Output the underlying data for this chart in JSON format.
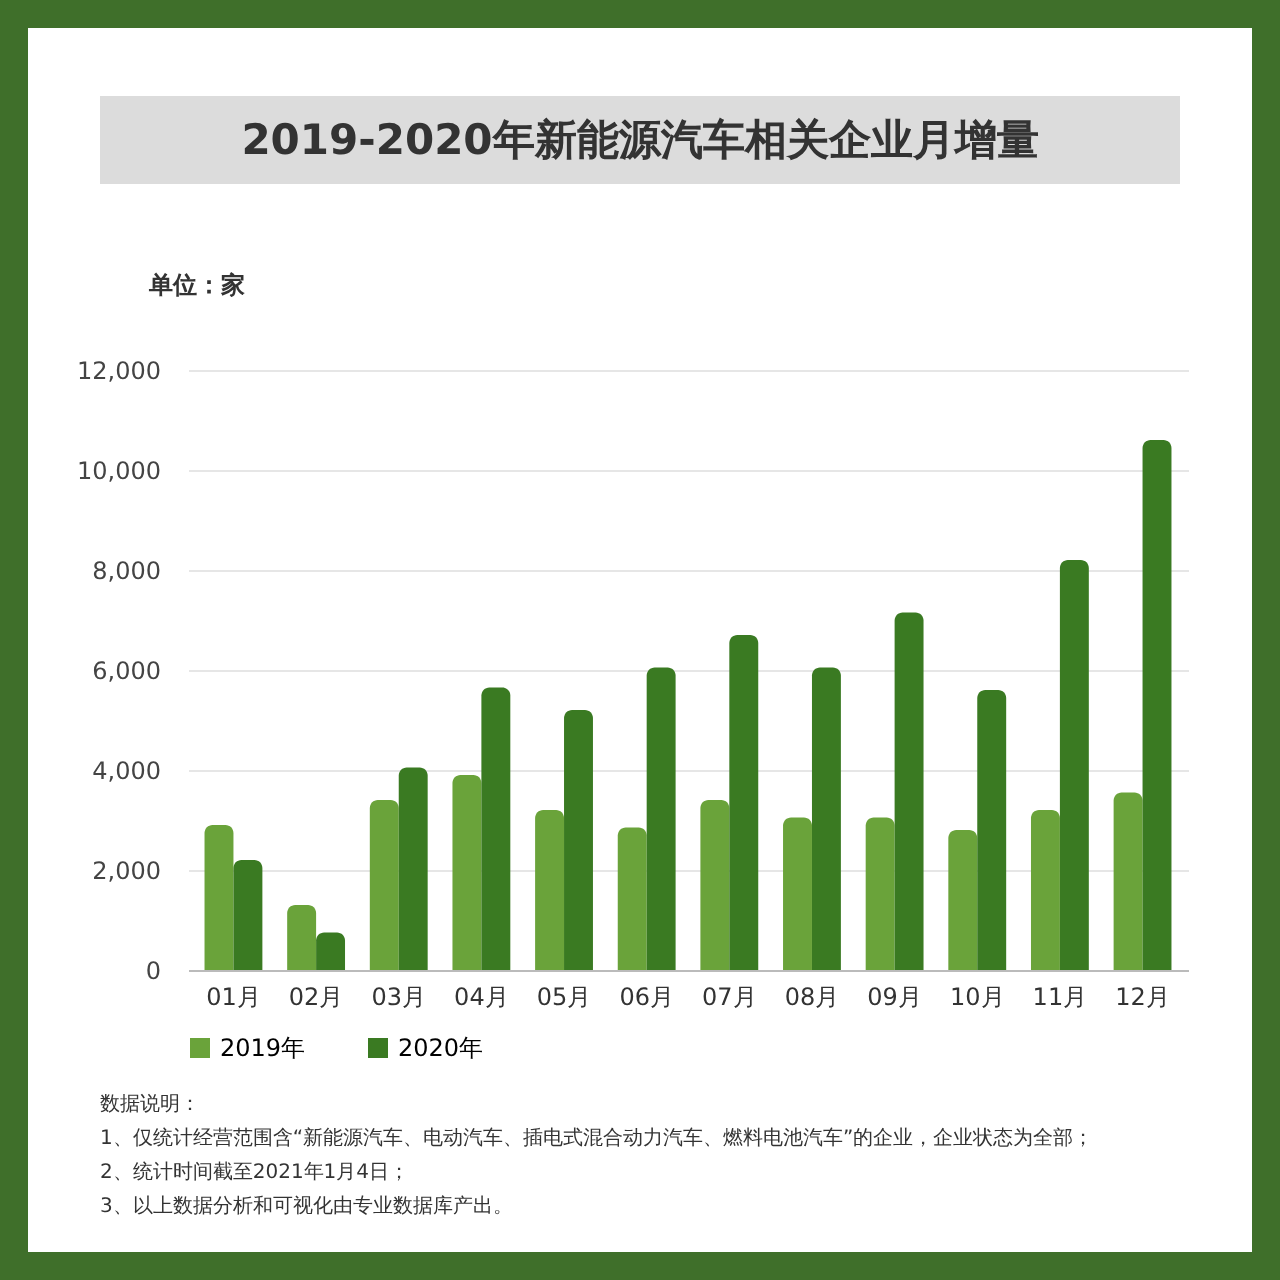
{
  "chart_data": {
    "type": "bar",
    "title": "2019-2020年新能源汽车相关企业月增量",
    "ylabel": "单位：家",
    "categories": [
      "01月",
      "02月",
      "03月",
      "04月",
      "05月",
      "06月",
      "07月",
      "08月",
      "09月",
      "10月",
      "11月",
      "12月"
    ],
    "series": [
      {
        "name": "2019年",
        "color": "#6aa33a",
        "values": [
          2900,
          1300,
          3400,
          3900,
          3200,
          2850,
          3400,
          3050,
          3050,
          2800,
          3200,
          3550
        ]
      },
      {
        "name": "2020年",
        "color": "#3a7a22",
        "values": [
          2200,
          750,
          4050,
          5650,
          5200,
          6050,
          6700,
          6050,
          7150,
          5600,
          8200,
          10600
        ]
      }
    ],
    "ylim": [
      0,
      12000
    ],
    "yticks": [
      0,
      {
        "value": 2000,
        "label": "2,000"
      },
      {
        "value": 4000,
        "label": "4,000"
      },
      {
        "value": 6000,
        "label": "6,000"
      },
      {
        "value": 8000,
        "label": "8,000"
      },
      {
        "value": 10000,
        "label": "10,000"
      },
      {
        "value": 12000,
        "label": "12,000"
      }
    ],
    "grid": "y",
    "legend": "bottom",
    "annotations": [
      "数据说明：",
      "1、仅统计经营范围含“新能源汽车、电动汽车、插电式混合动力汽车、燃料电池汽车”的企业，企业状态为全部；",
      "2、统计时间截至2021年1月4日；",
      "3、以上数据分析和可视化由专业数据库产出。"
    ]
  }
}
